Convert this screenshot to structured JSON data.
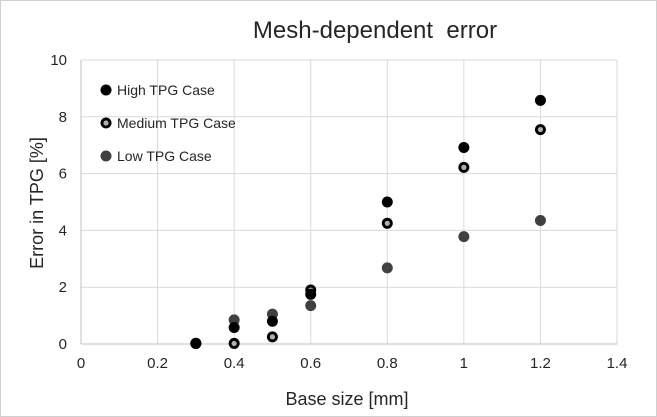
{
  "chart_data": {
    "type": "scatter",
    "title": "Mesh-dependent  error",
    "xlabel": "Base size [mm]",
    "ylabel": "Error in TPG [%]",
    "xlim": [
      0,
      1.4
    ],
    "ylim": [
      0,
      10
    ],
    "xticks": [
      0,
      0.2,
      0.4,
      0.6,
      0.8,
      1,
      1.2,
      1.4
    ],
    "xtick_labels": [
      "0",
      "0.2",
      "0.4",
      "0.6",
      "0.8",
      "1",
      "1.2",
      "1.4"
    ],
    "yticks": [
      0,
      2,
      4,
      6,
      8,
      10
    ],
    "ytick_labels": [
      "0",
      "2",
      "4",
      "6",
      "8",
      "10"
    ],
    "grid": true,
    "legend_position": "top-left",
    "series": [
      {
        "name": "High TPG Case",
        "marker": "filled-black",
        "color": "#000000",
        "x": [
          0.3,
          0.4,
          0.5,
          0.6,
          0.8,
          1.0,
          1.2
        ],
        "y": [
          0.02,
          0.58,
          0.8,
          1.75,
          5.0,
          6.92,
          8.58
        ]
      },
      {
        "name": "Medium TPG Case",
        "marker": "ring",
        "color": "#000000",
        "x": [
          0.3,
          0.4,
          0.5,
          0.6,
          0.8,
          1.0,
          1.2
        ],
        "y": [
          0.02,
          0.02,
          0.25,
          1.9,
          4.25,
          6.22,
          7.55
        ]
      },
      {
        "name": "Low TPG Case",
        "marker": "filled-gray",
        "color": "#404040",
        "x": [
          0.3,
          0.4,
          0.5,
          0.6,
          0.8,
          1.0,
          1.2
        ],
        "y": [
          0.02,
          0.85,
          1.05,
          1.35,
          2.68,
          3.78,
          4.35
        ]
      }
    ]
  }
}
